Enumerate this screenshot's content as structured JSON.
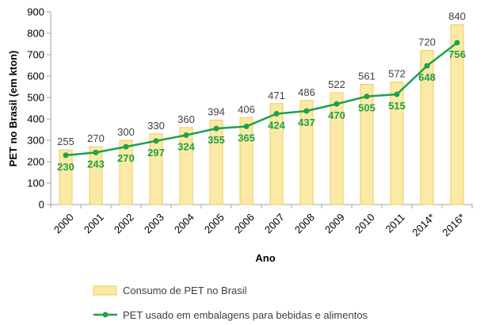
{
  "chart_data": {
    "type": "bar",
    "categories": [
      "2000",
      "2001",
      "2002",
      "2003",
      "2004",
      "2005",
      "2006",
      "2007",
      "2008",
      "2009",
      "2010",
      "2011",
      "2014*",
      "2016*"
    ],
    "series": [
      {
        "name": "Consumo de PET no Brasil",
        "kind": "bar",
        "values": [
          255,
          270,
          300,
          330,
          360,
          394,
          406,
          471,
          486,
          522,
          561,
          572,
          720,
          840
        ]
      },
      {
        "name": "PET usado em embalagens para bebidas e alimentos",
        "kind": "line",
        "values": [
          230,
          243,
          270,
          297,
          324,
          355,
          365,
          424,
          437,
          470,
          505,
          515,
          648,
          756
        ]
      }
    ],
    "xlabel": "Ano",
    "ylabel": "PET no Brasil (em kton)",
    "ylim": [
      0,
      900
    ],
    "yticks": [
      0,
      100,
      200,
      300,
      400,
      500,
      600,
      700,
      800,
      900
    ],
    "grid": false,
    "legend": "bottom",
    "colors": {
      "bar_fill": "#fbeaa6",
      "bar_stroke": "#f2c95a",
      "line": "#1ea14c",
      "axis": "#a0a0a0"
    }
  }
}
